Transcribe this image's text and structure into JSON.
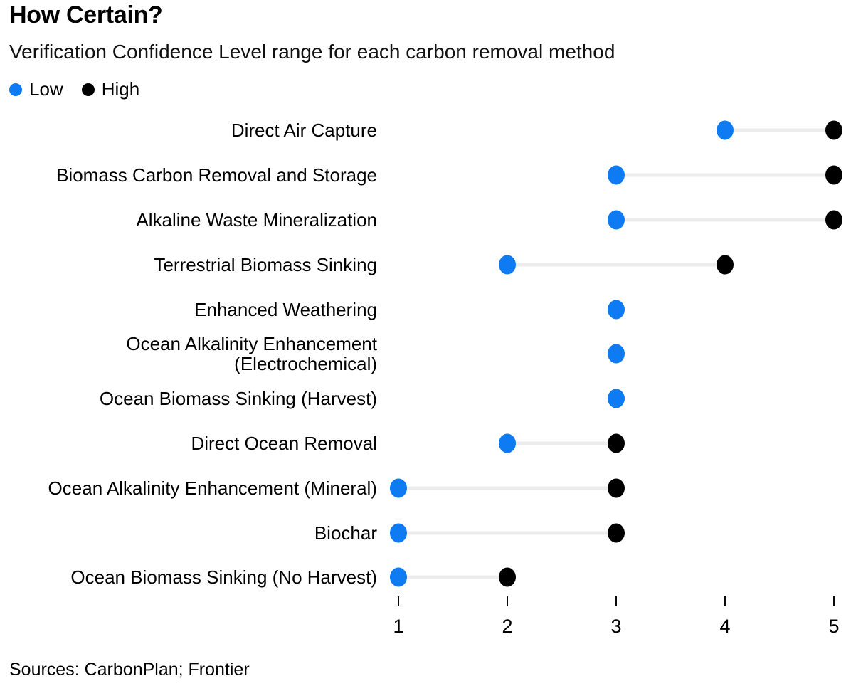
{
  "header": {
    "title": "How Certain?",
    "subtitle": "Verification Confidence Level range for each carbon removal method"
  },
  "legend": {
    "low": {
      "label": "Low",
      "color": "#0e7bf3"
    },
    "high": {
      "label": "High",
      "color": "#000000"
    }
  },
  "colors": {
    "low_dot": "#0e7bf3",
    "high_dot": "#000000",
    "connector": "#ececec",
    "text": "#000000",
    "background": "#ffffff"
  },
  "chart_data": {
    "type": "scatter",
    "variant": "dumbbell-range",
    "title": "How Certain?",
    "subtitle": "Verification Confidence Level range for each carbon removal method",
    "categories": [
      "Direct Air Capture",
      "Biomass Carbon Removal and Storage",
      "Alkaline Waste Mineralization",
      "Terrestrial Biomass Sinking",
      "Enhanced Weathering",
      "Ocean Alkalinity Enhancement (Electrochemical)",
      "Ocean Biomass Sinking (Harvest)",
      "Direct Ocean Removal",
      "Ocean Alkalinity Enhancement (Mineral)",
      "Biochar",
      "Ocean Biomass Sinking (No Harvest)"
    ],
    "series": [
      {
        "name": "Low",
        "color": "#0e7bf3",
        "values": [
          4,
          3,
          3,
          2,
          3,
          3,
          3,
          2,
          1,
          1,
          1
        ]
      },
      {
        "name": "High",
        "color": "#000000",
        "values": [
          5,
          5,
          5,
          4,
          null,
          null,
          null,
          3,
          3,
          3,
          2
        ]
      }
    ],
    "x_ticks": [
      "1",
      "2",
      "3",
      "4",
      "5"
    ],
    "xlim": [
      1,
      5
    ],
    "xlabel": "",
    "ylabel": "",
    "grid": false,
    "legend_position": "top-left"
  },
  "footer": {
    "sources": "Sources: CarbonPlan; Frontier"
  }
}
